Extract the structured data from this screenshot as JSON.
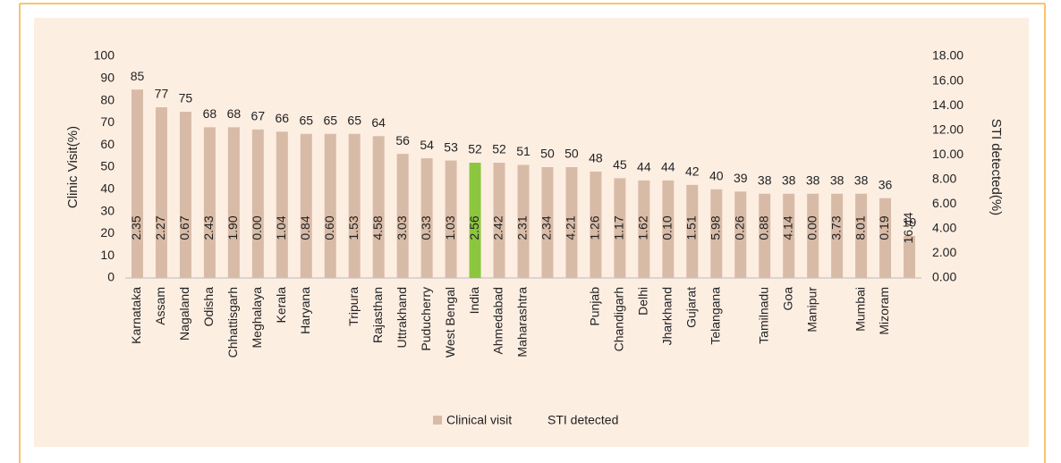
{
  "chart_data": {
    "type": "bar",
    "categories": [
      "Karnataka",
      "Assam",
      "Nagaland",
      "Odisha",
      "Chhattisgarh",
      "Meghalaya",
      "Kerala",
      "Haryana",
      null,
      "Tripura",
      "Rajasthan",
      "Uttrakhand",
      "Puducherry",
      "West Bengal",
      "India",
      "Ahmedabad",
      "Maharashtra",
      null,
      null,
      "Punjab",
      "Chandigarh",
      "Delhi",
      "Jharkhand",
      "Gujarat",
      "Telangana",
      null,
      "Tamilnadu",
      "Goa",
      "Manipur",
      null,
      "Mumbai",
      "Mizoram",
      null
    ],
    "series": [
      {
        "name": "Clinical visit",
        "color": "#d8bba7",
        "colors": [
          "#d8bba7",
          "#d8bba7",
          "#d8bba7",
          "#d8bba7",
          "#d8bba7",
          "#d8bba7",
          "#d8bba7",
          "#d8bba7",
          "#d8bba7",
          "#d8bba7",
          "#d8bba7",
          "#d8bba7",
          "#d8bba7",
          "#d8bba7",
          "#8cc63f",
          "#d8bba7",
          "#d8bba7",
          "#d8bba7",
          "#d8bba7",
          "#d8bba7",
          "#d8bba7",
          "#d8bba7",
          "#d8bba7",
          "#d8bba7",
          "#d8bba7",
          "#d8bba7",
          "#d8bba7",
          "#d8bba7",
          "#d8bba7",
          "#d8bba7",
          "#d8bba7",
          "#d8bba7",
          "#d8bba7"
        ],
        "values": [
          85,
          77,
          75,
          68,
          68,
          67,
          66,
          65,
          65,
          65,
          64,
          56,
          54,
          53,
          52,
          52,
          51,
          50,
          50,
          48,
          45,
          44,
          44,
          42,
          40,
          39,
          38,
          38,
          38,
          38,
          38,
          36,
          19
        ]
      },
      {
        "name": "STI detected",
        "axis": "y2",
        "values": [
          2.35,
          2.27,
          0.67,
          2.43,
          1.9,
          0,
          1.04,
          0.84,
          0.6,
          1.53,
          4.58,
          3.03,
          0.33,
          1.03,
          2.56,
          2.42,
          2.31,
          2.34,
          4.21,
          1.26,
          1.17,
          1.62,
          0.1,
          1.51,
          5.98,
          0.26,
          0.88,
          4.14,
          0,
          3.73,
          8.01,
          0.19,
          16.44
        ],
        "value_labels": [
          "2.35",
          "2.27",
          "0.67",
          "2.43",
          "1.90",
          "0.00",
          "1.04",
          "0.84",
          "0.60",
          "1.53",
          "4.58",
          "3.03",
          "0.33",
          "1.03",
          "2.56",
          "2.42",
          "2.31",
          "2.34",
          "4.21",
          "1.26",
          "1.17",
          "1.62",
          "0.10",
          "1.51",
          "5.98",
          "0.26",
          "0.88",
          "4.14",
          "0.00",
          "3.73",
          "8.01",
          "0.19",
          "16.44"
        ]
      }
    ],
    "ylabel": "Clinic Visit(%)",
    "y2label": "STI detected(%)",
    "ylim": [
      0,
      100
    ],
    "yticks": [
      0,
      10,
      20,
      30,
      40,
      50,
      60,
      70,
      80,
      90,
      100
    ],
    "y2lim": [
      0,
      18
    ],
    "y2ticks": [
      {
        "value": 0,
        "label": "0.00"
      },
      {
        "value": 2,
        "label": "2.00"
      },
      {
        "value": 4,
        "label": "4.00"
      },
      {
        "value": 6,
        "label": "6.00"
      },
      {
        "value": 8,
        "label": "8.00"
      },
      {
        "value": 10,
        "label": "10.00"
      },
      {
        "value": 12,
        "label": "12.00"
      },
      {
        "value": 14,
        "label": "14.00"
      },
      {
        "value": 16,
        "label": "16.00"
      },
      {
        "value": 18,
        "label": "18.00"
      }
    ],
    "legend": "bottom"
  }
}
